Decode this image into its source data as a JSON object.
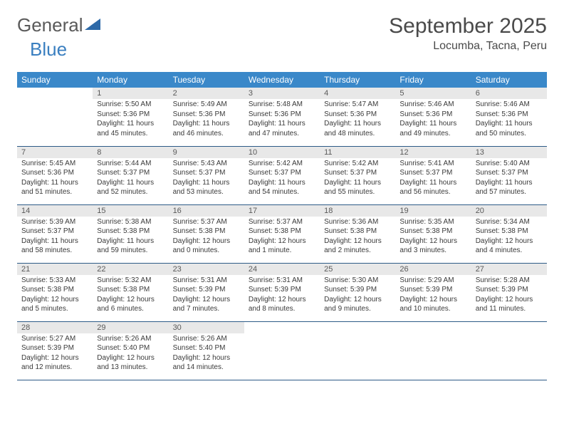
{
  "brand": {
    "part1": "General",
    "part2": "Blue"
  },
  "title": "September 2025",
  "location": "Locumba, Tacna, Peru",
  "style": {
    "header_bg": "#3a88c9",
    "header_fg": "#ffffff",
    "daynum_bg": "#e8e8e8",
    "daynum_fg": "#5a5a5a",
    "entry_color": "#3a3a3a",
    "title_color": "#4a4a4a",
    "divider_color": "#2d5b87",
    "logo_icon_color": "#2e6aa8",
    "font_family": "Arial",
    "header_fontsize": 12,
    "daynum_fontsize": 11,
    "entry_fontsize": 10,
    "title_fontsize": 30,
    "location_fontsize": 16
  },
  "day_headers": [
    "Sunday",
    "Monday",
    "Tuesday",
    "Wednesday",
    "Thursday",
    "Friday",
    "Saturday"
  ],
  "weeks": [
    [
      {
        "num": "",
        "sunrise": "",
        "sunset": "",
        "daylight": ""
      },
      {
        "num": "1",
        "sunrise": "Sunrise: 5:50 AM",
        "sunset": "Sunset: 5:36 PM",
        "daylight": "Daylight: 11 hours and 45 minutes."
      },
      {
        "num": "2",
        "sunrise": "Sunrise: 5:49 AM",
        "sunset": "Sunset: 5:36 PM",
        "daylight": "Daylight: 11 hours and 46 minutes."
      },
      {
        "num": "3",
        "sunrise": "Sunrise: 5:48 AM",
        "sunset": "Sunset: 5:36 PM",
        "daylight": "Daylight: 11 hours and 47 minutes."
      },
      {
        "num": "4",
        "sunrise": "Sunrise: 5:47 AM",
        "sunset": "Sunset: 5:36 PM",
        "daylight": "Daylight: 11 hours and 48 minutes."
      },
      {
        "num": "5",
        "sunrise": "Sunrise: 5:46 AM",
        "sunset": "Sunset: 5:36 PM",
        "daylight": "Daylight: 11 hours and 49 minutes."
      },
      {
        "num": "6",
        "sunrise": "Sunrise: 5:46 AM",
        "sunset": "Sunset: 5:36 PM",
        "daylight": "Daylight: 11 hours and 50 minutes."
      }
    ],
    [
      {
        "num": "7",
        "sunrise": "Sunrise: 5:45 AM",
        "sunset": "Sunset: 5:36 PM",
        "daylight": "Daylight: 11 hours and 51 minutes."
      },
      {
        "num": "8",
        "sunrise": "Sunrise: 5:44 AM",
        "sunset": "Sunset: 5:37 PM",
        "daylight": "Daylight: 11 hours and 52 minutes."
      },
      {
        "num": "9",
        "sunrise": "Sunrise: 5:43 AM",
        "sunset": "Sunset: 5:37 PM",
        "daylight": "Daylight: 11 hours and 53 minutes."
      },
      {
        "num": "10",
        "sunrise": "Sunrise: 5:42 AM",
        "sunset": "Sunset: 5:37 PM",
        "daylight": "Daylight: 11 hours and 54 minutes."
      },
      {
        "num": "11",
        "sunrise": "Sunrise: 5:42 AM",
        "sunset": "Sunset: 5:37 PM",
        "daylight": "Daylight: 11 hours and 55 minutes."
      },
      {
        "num": "12",
        "sunrise": "Sunrise: 5:41 AM",
        "sunset": "Sunset: 5:37 PM",
        "daylight": "Daylight: 11 hours and 56 minutes."
      },
      {
        "num": "13",
        "sunrise": "Sunrise: 5:40 AM",
        "sunset": "Sunset: 5:37 PM",
        "daylight": "Daylight: 11 hours and 57 minutes."
      }
    ],
    [
      {
        "num": "14",
        "sunrise": "Sunrise: 5:39 AM",
        "sunset": "Sunset: 5:37 PM",
        "daylight": "Daylight: 11 hours and 58 minutes."
      },
      {
        "num": "15",
        "sunrise": "Sunrise: 5:38 AM",
        "sunset": "Sunset: 5:38 PM",
        "daylight": "Daylight: 11 hours and 59 minutes."
      },
      {
        "num": "16",
        "sunrise": "Sunrise: 5:37 AM",
        "sunset": "Sunset: 5:38 PM",
        "daylight": "Daylight: 12 hours and 0 minutes."
      },
      {
        "num": "17",
        "sunrise": "Sunrise: 5:37 AM",
        "sunset": "Sunset: 5:38 PM",
        "daylight": "Daylight: 12 hours and 1 minute."
      },
      {
        "num": "18",
        "sunrise": "Sunrise: 5:36 AM",
        "sunset": "Sunset: 5:38 PM",
        "daylight": "Daylight: 12 hours and 2 minutes."
      },
      {
        "num": "19",
        "sunrise": "Sunrise: 5:35 AM",
        "sunset": "Sunset: 5:38 PM",
        "daylight": "Daylight: 12 hours and 3 minutes."
      },
      {
        "num": "20",
        "sunrise": "Sunrise: 5:34 AM",
        "sunset": "Sunset: 5:38 PM",
        "daylight": "Daylight: 12 hours and 4 minutes."
      }
    ],
    [
      {
        "num": "21",
        "sunrise": "Sunrise: 5:33 AM",
        "sunset": "Sunset: 5:38 PM",
        "daylight": "Daylight: 12 hours and 5 minutes."
      },
      {
        "num": "22",
        "sunrise": "Sunrise: 5:32 AM",
        "sunset": "Sunset: 5:38 PM",
        "daylight": "Daylight: 12 hours and 6 minutes."
      },
      {
        "num": "23",
        "sunrise": "Sunrise: 5:31 AM",
        "sunset": "Sunset: 5:39 PM",
        "daylight": "Daylight: 12 hours and 7 minutes."
      },
      {
        "num": "24",
        "sunrise": "Sunrise: 5:31 AM",
        "sunset": "Sunset: 5:39 PM",
        "daylight": "Daylight: 12 hours and 8 minutes."
      },
      {
        "num": "25",
        "sunrise": "Sunrise: 5:30 AM",
        "sunset": "Sunset: 5:39 PM",
        "daylight": "Daylight: 12 hours and 9 minutes."
      },
      {
        "num": "26",
        "sunrise": "Sunrise: 5:29 AM",
        "sunset": "Sunset: 5:39 PM",
        "daylight": "Daylight: 12 hours and 10 minutes."
      },
      {
        "num": "27",
        "sunrise": "Sunrise: 5:28 AM",
        "sunset": "Sunset: 5:39 PM",
        "daylight": "Daylight: 12 hours and 11 minutes."
      }
    ],
    [
      {
        "num": "28",
        "sunrise": "Sunrise: 5:27 AM",
        "sunset": "Sunset: 5:39 PM",
        "daylight": "Daylight: 12 hours and 12 minutes."
      },
      {
        "num": "29",
        "sunrise": "Sunrise: 5:26 AM",
        "sunset": "Sunset: 5:40 PM",
        "daylight": "Daylight: 12 hours and 13 minutes."
      },
      {
        "num": "30",
        "sunrise": "Sunrise: 5:26 AM",
        "sunset": "Sunset: 5:40 PM",
        "daylight": "Daylight: 12 hours and 14 minutes."
      },
      {
        "num": "",
        "sunrise": "",
        "sunset": "",
        "daylight": ""
      },
      {
        "num": "",
        "sunrise": "",
        "sunset": "",
        "daylight": ""
      },
      {
        "num": "",
        "sunrise": "",
        "sunset": "",
        "daylight": ""
      },
      {
        "num": "",
        "sunrise": "",
        "sunset": "",
        "daylight": ""
      }
    ]
  ]
}
